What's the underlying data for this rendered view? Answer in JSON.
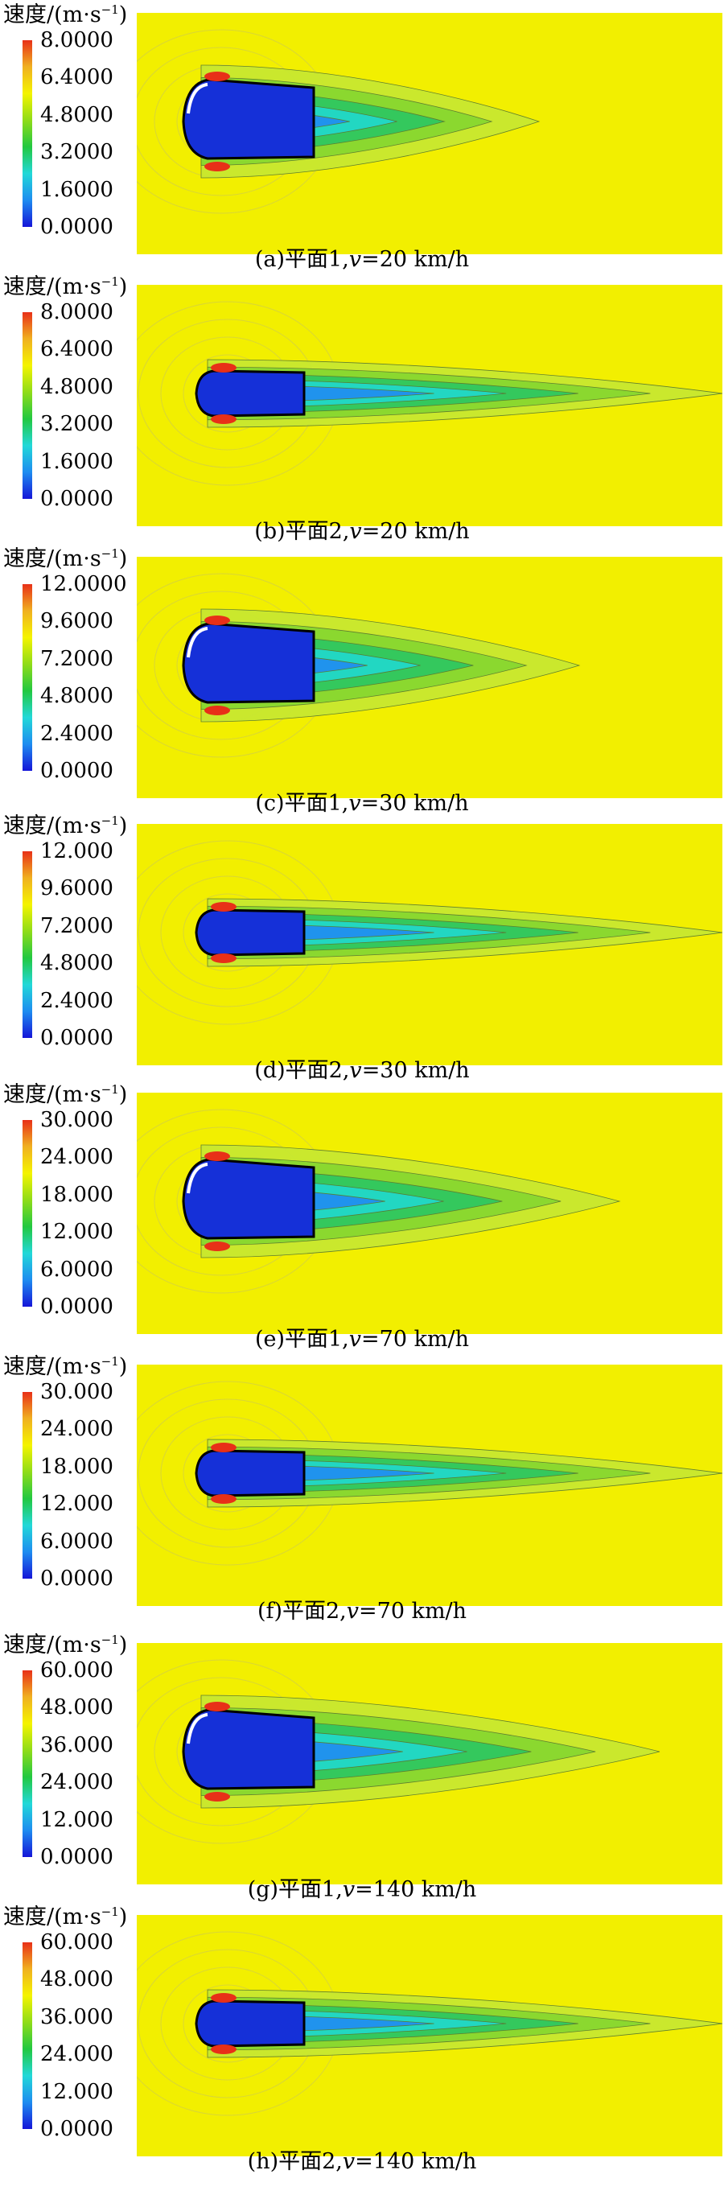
{
  "figure": {
    "unit_label_main": "速度/(m·s",
    "unit_label_sup": "−1",
    "unit_label_close": ")",
    "colorbar_colors": [
      "#1515d8",
      "#1e8cf0",
      "#22d8d8",
      "#22c840",
      "#8fdc18",
      "#f4f400",
      "#f0b020",
      "#e83018"
    ],
    "field_background": "#f2ef00",
    "panels": [
      {
        "id": "a",
        "caption_pre": "(a)平面1,",
        "caption_var": "v",
        "caption_post": "=20 km/h",
        "ticks": [
          "8.0000",
          "6.4000",
          "4.8000",
          "3.2000",
          "1.6000",
          "0.0000"
        ],
        "plane": 1
      },
      {
        "id": "b",
        "caption_pre": "(b)平面2,",
        "caption_var": "v",
        "caption_post": "=20 km/h",
        "ticks": [
          "8.0000",
          "6.4000",
          "4.8000",
          "3.2000",
          "1.6000",
          "0.0000"
        ],
        "plane": 2
      },
      {
        "id": "c",
        "caption_pre": "(c)平面1,",
        "caption_var": "v",
        "caption_post": "=30 km/h",
        "ticks": [
          "12.0000",
          "9.6000",
          "7.2000",
          "4.8000",
          "2.4000",
          "0.0000"
        ],
        "plane": 1
      },
      {
        "id": "d",
        "caption_pre": "(d)平面2,",
        "caption_var": "v",
        "caption_post": "=30 km/h",
        "ticks": [
          "12.000",
          "9.6000",
          "7.2000",
          "4.8000",
          "2.4000",
          "0.0000"
        ],
        "plane": 2
      },
      {
        "id": "e",
        "caption_pre": "(e)平面1,",
        "caption_var": "v",
        "caption_post": "=70 km/h",
        "ticks": [
          "30.000",
          "24.000",
          "18.000",
          "12.000",
          "6.0000",
          "0.0000"
        ],
        "plane": 1
      },
      {
        "id": "f",
        "caption_pre": "(f)平面2,",
        "caption_var": "v",
        "caption_post": "=70 km/h",
        "ticks": [
          "30.000",
          "24.000",
          "18.000",
          "12.000",
          "6.0000",
          "0.0000"
        ],
        "plane": 2
      },
      {
        "id": "g",
        "caption_pre": "(g)平面1,",
        "caption_var": "v",
        "caption_post": "=140 km/h",
        "ticks": [
          "60.000",
          "48.000",
          "36.000",
          "24.000",
          "12.000",
          "0.0000"
        ],
        "plane": 1
      },
      {
        "id": "h",
        "caption_pre": "(h)平面2,",
        "caption_var": "v",
        "caption_post": "=140 km/h",
        "ticks": [
          "60.000",
          "48.000",
          "36.000",
          "24.000",
          "12.000",
          "0.0000"
        ],
        "plane": 2
      }
    ]
  }
}
